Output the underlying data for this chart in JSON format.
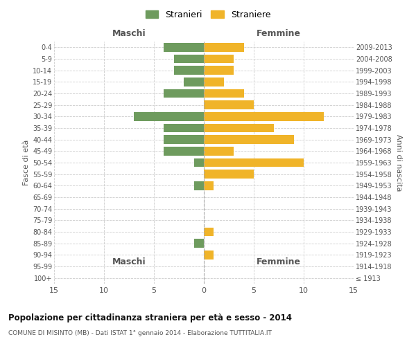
{
  "age_groups": [
    "100+",
    "95-99",
    "90-94",
    "85-89",
    "80-84",
    "75-79",
    "70-74",
    "65-69",
    "60-64",
    "55-59",
    "50-54",
    "45-49",
    "40-44",
    "35-39",
    "30-34",
    "25-29",
    "20-24",
    "15-19",
    "10-14",
    "5-9",
    "0-4"
  ],
  "birth_years": [
    "≤ 1913",
    "1914-1918",
    "1919-1923",
    "1924-1928",
    "1929-1933",
    "1934-1938",
    "1939-1943",
    "1944-1948",
    "1949-1953",
    "1954-1958",
    "1959-1963",
    "1964-1968",
    "1969-1973",
    "1974-1978",
    "1979-1983",
    "1984-1988",
    "1989-1993",
    "1994-1998",
    "1999-2003",
    "2004-2008",
    "2009-2013"
  ],
  "maschi": [
    0,
    0,
    0,
    1,
    0,
    0,
    0,
    0,
    1,
    0,
    1,
    4,
    4,
    4,
    7,
    0,
    4,
    2,
    3,
    3,
    4
  ],
  "femmine": [
    0,
    0,
    1,
    0,
    1,
    0,
    0,
    0,
    1,
    5,
    10,
    3,
    9,
    7,
    12,
    5,
    4,
    2,
    3,
    3,
    4
  ],
  "maschi_color": "#6e9b5e",
  "femmine_color": "#f0b429",
  "background_color": "#ffffff",
  "grid_color": "#cccccc",
  "title": "Popolazione per cittadinanza straniera per età e sesso - 2014",
  "subtitle": "COMUNE DI MISINTO (MB) - Dati ISTAT 1° gennaio 2014 - Elaborazione TUTTITALIA.IT",
  "ylabel_left": "Fasce di età",
  "ylabel_right": "Anni di nascita",
  "xlabel_maschi": "Maschi",
  "xlabel_femmine": "Femmine",
  "legend_maschi": "Stranieri",
  "legend_femmine": "Straniere",
  "xlim": 15,
  "bar_height": 0.75
}
